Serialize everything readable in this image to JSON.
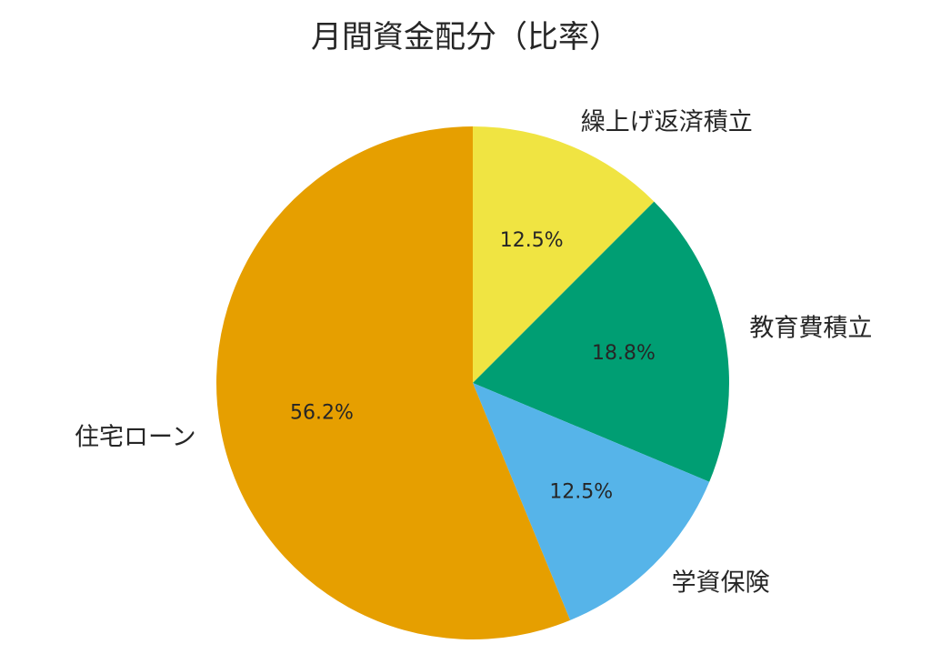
{
  "chart_data": {
    "type": "pie",
    "title": "月間資金配分（比率）",
    "start_angle": "top",
    "direction": "clockwise",
    "slices": [
      {
        "label": "繰上げ返済積立",
        "value": 12.5,
        "pct_label": "12.5%",
        "color": "#F0E442"
      },
      {
        "label": "教育費積立",
        "value": 18.8,
        "pct_label": "18.8%",
        "color": "#009E73"
      },
      {
        "label": "学資保険",
        "value": 12.5,
        "pct_label": "12.5%",
        "color": "#56B4E9"
      },
      {
        "label": "住宅ローン",
        "value": 56.2,
        "pct_label": "56.2%",
        "color": "#E69F00"
      }
    ]
  }
}
